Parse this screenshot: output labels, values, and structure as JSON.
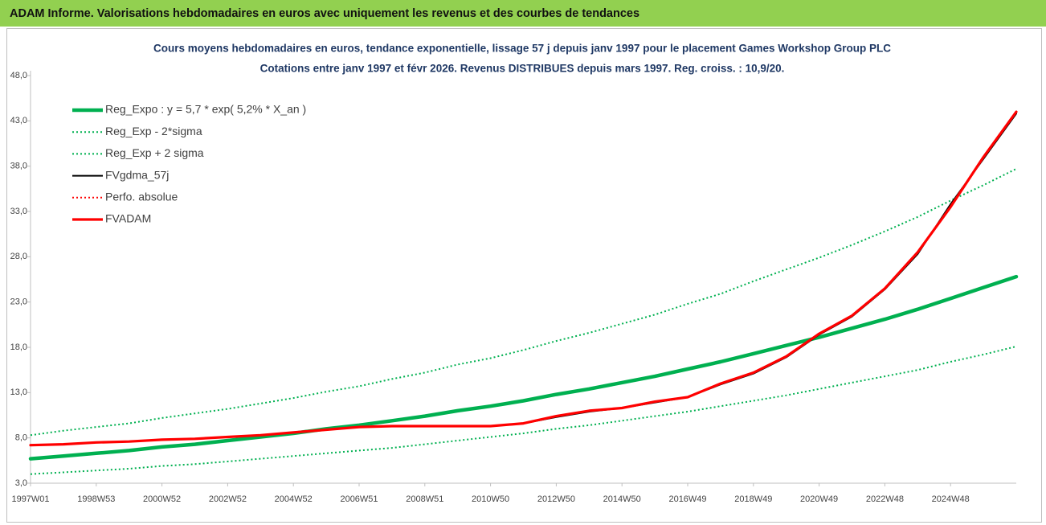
{
  "header": {
    "title": "ADAM Informe. Valorisations hebdomadaires en euros avec uniquement les revenus et des courbes de tendances"
  },
  "chart_data": {
    "type": "line",
    "title": "Cours moyens hebdomadaires en euros, tendance exponentielle, lissage 57 j depuis janv 1997 pour le placement Games Workshop Group PLC",
    "subtitle": "Cotations entre janv 1997 et févr 2026. Revenus DISTRIBUES depuis mars 1997. Reg. croiss. : 10,9/20.",
    "categories": [
      "1997W01",
      null,
      "1998W53",
      null,
      "2000W52",
      null,
      "2002W52",
      null,
      "2004W52",
      null,
      "2006W51",
      null,
      "2008W51",
      null,
      "2010W50",
      null,
      "2012W50",
      null,
      "2014W50",
      null,
      "2016W49",
      null,
      "2018W49",
      null,
      "2020W49",
      null,
      "2022W48",
      null,
      "2024W48",
      null,
      null
    ],
    "ylim": [
      3,
      48
    ],
    "yticks": [
      {
        "value": 3,
        "label": "3,0"
      },
      {
        "value": 8,
        "label": "8,0"
      },
      {
        "value": 13,
        "label": "13,0"
      },
      {
        "value": 18,
        "label": "18,0"
      },
      {
        "value": 23,
        "label": "23,0"
      },
      {
        "value": 28,
        "label": "28,0"
      },
      {
        "value": 33,
        "label": "33,0"
      },
      {
        "value": 38,
        "label": "38,0"
      },
      {
        "value": 43,
        "label": "43,0"
      },
      {
        "value": 48,
        "label": "48,0"
      }
    ],
    "grid": false,
    "legend": "top-left",
    "series": [
      {
        "name": "Reg_Expo : y = 5,7 * exp( 5,2% *  X_an )",
        "color": "#00b050",
        "line": "thick",
        "values": [
          5.7,
          6.0,
          6.3,
          6.6,
          7.0,
          7.3,
          7.7,
          8.1,
          8.5,
          9.0,
          9.4,
          9.9,
          10.4,
          11.0,
          11.5,
          12.1,
          12.8,
          13.4,
          14.1,
          14.8,
          15.6,
          16.4,
          17.3,
          18.2,
          19.1,
          20.1,
          21.1,
          22.2,
          23.4,
          24.6,
          25.8
        ]
      },
      {
        "name": "Reg_Exp - 2*sigma",
        "color": "#00b050",
        "line": "dotted",
        "values": [
          4.0,
          4.2,
          4.4,
          4.6,
          4.9,
          5.1,
          5.4,
          5.7,
          6.0,
          6.3,
          6.6,
          6.9,
          7.3,
          7.7,
          8.1,
          8.5,
          9.0,
          9.4,
          9.9,
          10.4,
          10.9,
          11.5,
          12.1,
          12.7,
          13.4,
          14.1,
          14.8,
          15.5,
          16.4,
          17.2,
          18.1
        ]
      },
      {
        "name": "Reg_Exp + 2 sigma",
        "color": "#00b050",
        "line": "dotted",
        "values": [
          8.3,
          8.8,
          9.2,
          9.6,
          10.2,
          10.7,
          11.2,
          11.8,
          12.4,
          13.1,
          13.7,
          14.5,
          15.2,
          16.1,
          16.8,
          17.7,
          18.7,
          19.6,
          20.6,
          21.6,
          22.8,
          23.9,
          25.3,
          26.6,
          27.9,
          29.3,
          30.8,
          32.4,
          34.2,
          35.9,
          37.7
        ]
      },
      {
        "name": "FVgdma_57j",
        "color": "#000000",
        "line": "thin",
        "values": [
          7.2,
          7.3,
          7.5,
          7.6,
          7.8,
          7.9,
          8.1,
          8.3,
          8.6,
          8.9,
          9.2,
          9.3,
          9.3,
          9.3,
          9.3,
          9.6,
          10.3,
          10.9,
          11.3,
          11.9,
          12.5,
          13.9,
          15.1,
          16.9,
          19.4,
          21.4,
          24.4,
          28.3,
          33.8,
          38.8,
          43.8
        ]
      },
      {
        "name": "Perfo. absolue",
        "color": "#ff0000",
        "line": "dotted",
        "values": [
          7.2,
          7.3,
          7.5,
          7.6,
          7.8,
          7.9,
          8.1,
          8.3,
          8.6,
          8.9,
          9.2,
          9.3,
          9.3,
          9.3,
          9.3,
          9.6,
          10.4,
          11.0,
          11.3,
          12.0,
          12.5,
          14.0,
          15.2,
          17.0,
          19.5,
          21.5,
          24.5,
          28.5,
          33.5,
          39.0,
          44.0
        ]
      },
      {
        "name": "FVADAM",
        "color": "#ff0000",
        "line": "solid",
        "values": [
          7.2,
          7.3,
          7.5,
          7.6,
          7.8,
          7.9,
          8.1,
          8.3,
          8.6,
          8.9,
          9.2,
          9.3,
          9.3,
          9.3,
          9.3,
          9.6,
          10.4,
          11.0,
          11.3,
          12.0,
          12.5,
          14.0,
          15.2,
          17.0,
          19.5,
          21.5,
          24.5,
          28.5,
          33.5,
          39.0,
          44.0
        ]
      }
    ]
  }
}
